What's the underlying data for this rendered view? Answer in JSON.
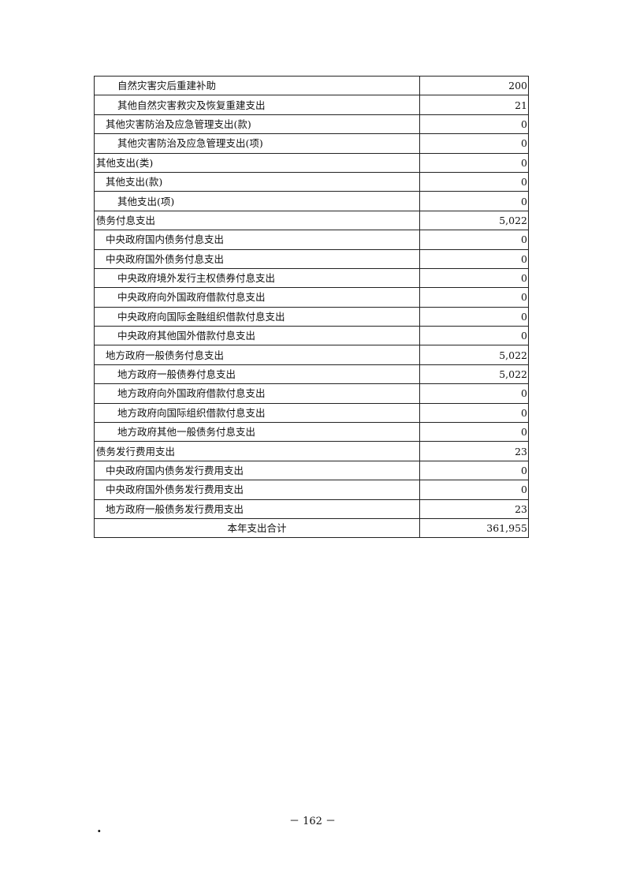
{
  "rows": [
    {
      "name": "自然灾害灾后重建补助",
      "value": "200",
      "level": 2
    },
    {
      "name": "其他自然灾害救灾及恢复重建支出",
      "value": "21",
      "level": 2
    },
    {
      "name": "其他灾害防治及应急管理支出(款)",
      "value": "0",
      "level": 1
    },
    {
      "name": "其他灾害防治及应急管理支出(项)",
      "value": "0",
      "level": 2
    },
    {
      "name": "其他支出(类)",
      "value": "0",
      "level": 0
    },
    {
      "name": "其他支出(款)",
      "value": "0",
      "level": 1
    },
    {
      "name": "其他支出(项)",
      "value": "0",
      "level": 2
    },
    {
      "name": "债务付息支出",
      "value": "5,022",
      "level": 0
    },
    {
      "name": "中央政府国内债务付息支出",
      "value": "0",
      "level": 1
    },
    {
      "name": "中央政府国外债务付息支出",
      "value": "0",
      "level": 1
    },
    {
      "name": "中央政府境外发行主权债券付息支出",
      "value": "0",
      "level": 2
    },
    {
      "name": "中央政府向外国政府借款付息支出",
      "value": "0",
      "level": 2
    },
    {
      "name": "中央政府向国际金融组织借款付息支出",
      "value": "0",
      "level": 2
    },
    {
      "name": "中央政府其他国外借款付息支出",
      "value": "0",
      "level": 2
    },
    {
      "name": "地方政府一般债务付息支出",
      "value": "5,022",
      "level": 1
    },
    {
      "name": "地方政府一般债券付息支出",
      "value": "5,022",
      "level": 2
    },
    {
      "name": "地方政府向外国政府借款付息支出",
      "value": "0",
      "level": 2
    },
    {
      "name": "地方政府向国际组织借款付息支出",
      "value": "0",
      "level": 2
    },
    {
      "name": "地方政府其他一般债务付息支出",
      "value": "0",
      "level": 2
    },
    {
      "name": "债务发行费用支出",
      "value": "23",
      "level": 0
    },
    {
      "name": "中央政府国内债务发行费用支出",
      "value": "0",
      "level": 1
    },
    {
      "name": "中央政府国外债务发行费用支出",
      "value": "0",
      "level": 1
    },
    {
      "name": "地方政府一般债务发行费用支出",
      "value": "23",
      "level": 1
    }
  ],
  "total": {
    "name": "本年支出合计",
    "value": "361,955"
  },
  "page_number": "－ 162 －",
  "footer_mark": "."
}
